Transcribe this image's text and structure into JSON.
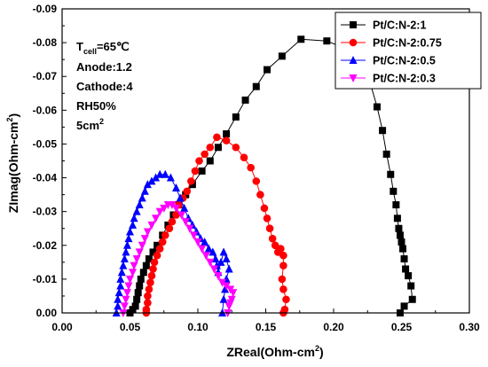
{
  "chart_data": {
    "type": "scatter",
    "xlabel": "ZReal(Ohm-cm",
    "xlabel_sup": "2",
    "xlabel_end": ")",
    "ylabel": "ZImag(Ohm-cm",
    "ylabel_sup": "2",
    "ylabel_end": ")",
    "xlim": [
      0.0,
      0.3
    ],
    "ylim": [
      0.0,
      -0.09
    ],
    "x_ticks": [
      "0.00",
      "0.05",
      "0.10",
      "0.15",
      "0.20",
      "0.25",
      "0.30"
    ],
    "y_ticks": [
      "0.00",
      "-0.01",
      "-0.02",
      "-0.03",
      "-0.04",
      "-0.05",
      "-0.06",
      "-0.07",
      "-0.08",
      "-0.09"
    ],
    "legend_position": "top-right",
    "annotations": {
      "tcell_main": "T",
      "tcell_sub": "cell",
      "tcell_value": "=65℃",
      "anode": "Anode:1.2",
      "cathode": "Cathode:4",
      "rh": "RH50%",
      "area_main": "5cm",
      "area_sup": "2"
    },
    "series": [
      {
        "name": "Pt/C:N-2:1",
        "color": "#000000",
        "marker": "square",
        "points": [
          [
            0.05,
            0.0
          ],
          [
            0.052,
            -0.001
          ],
          [
            0.054,
            -0.002
          ],
          [
            0.055,
            -0.004
          ],
          [
            0.056,
            -0.006
          ],
          [
            0.057,
            -0.008
          ],
          [
            0.058,
            -0.01
          ],
          [
            0.06,
            -0.012
          ],
          [
            0.062,
            -0.014
          ],
          [
            0.064,
            -0.016
          ],
          [
            0.067,
            -0.018
          ],
          [
            0.07,
            -0.02
          ],
          [
            0.074,
            -0.023
          ],
          [
            0.078,
            -0.026
          ],
          [
            0.082,
            -0.029
          ],
          [
            0.086,
            -0.032
          ],
          [
            0.091,
            -0.035
          ],
          [
            0.096,
            -0.038
          ],
          [
            0.103,
            -0.042
          ],
          [
            0.109,
            -0.045
          ],
          [
            0.115,
            -0.049
          ],
          [
            0.121,
            -0.053
          ],
          [
            0.128,
            -0.058
          ],
          [
            0.135,
            -0.063
          ],
          [
            0.143,
            -0.067
          ],
          [
            0.151,
            -0.072
          ],
          [
            0.162,
            -0.076
          ],
          [
            0.176,
            -0.081
          ],
          [
            0.195,
            -0.0805
          ],
          [
            0.21,
            -0.078
          ],
          [
            0.222,
            -0.073
          ],
          [
            0.227,
            -0.068
          ],
          [
            0.232,
            -0.061
          ],
          [
            0.236,
            -0.054
          ],
          [
            0.239,
            -0.047
          ],
          [
            0.242,
            -0.041
          ],
          [
            0.244,
            -0.036
          ],
          [
            0.246,
            -0.032
          ],
          [
            0.247,
            -0.028
          ],
          [
            0.248,
            -0.025
          ],
          [
            0.249,
            -0.023
          ],
          [
            0.25,
            -0.021
          ],
          [
            0.251,
            -0.019
          ],
          [
            0.252,
            -0.016
          ],
          [
            0.253,
            -0.013
          ],
          [
            0.255,
            -0.011
          ],
          [
            0.257,
            -0.008
          ],
          [
            0.258,
            -0.004
          ],
          [
            0.252,
            -0.002
          ],
          [
            0.249,
            0.0
          ]
        ]
      },
      {
        "name": "Pt/C:N-2:0.75",
        "color": "#ff0000",
        "marker": "circle",
        "points": [
          [
            0.062,
            0.0
          ],
          [
            0.062,
            -0.001
          ],
          [
            0.063,
            -0.003
          ],
          [
            0.063,
            -0.005
          ],
          [
            0.064,
            -0.007
          ],
          [
            0.065,
            -0.009
          ],
          [
            0.066,
            -0.011
          ],
          [
            0.067,
            -0.013
          ],
          [
            0.068,
            -0.015
          ],
          [
            0.07,
            -0.017
          ],
          [
            0.072,
            -0.019
          ],
          [
            0.074,
            -0.021
          ],
          [
            0.076,
            -0.023
          ],
          [
            0.079,
            -0.025
          ],
          [
            0.081,
            -0.027
          ],
          [
            0.084,
            -0.029
          ],
          [
            0.086,
            -0.032
          ],
          [
            0.089,
            -0.034
          ],
          [
            0.092,
            -0.036
          ],
          [
            0.095,
            -0.039
          ],
          [
            0.098,
            -0.042
          ],
          [
            0.101,
            -0.045
          ],
          [
            0.105,
            -0.047
          ],
          [
            0.109,
            -0.049
          ],
          [
            0.114,
            -0.052
          ],
          [
            0.121,
            -0.051
          ],
          [
            0.128,
            -0.049
          ],
          [
            0.134,
            -0.046
          ],
          [
            0.139,
            -0.043
          ],
          [
            0.143,
            -0.039
          ],
          [
            0.146,
            -0.035
          ],
          [
            0.149,
            -0.031
          ],
          [
            0.151,
            -0.028
          ],
          [
            0.153,
            -0.025
          ],
          [
            0.155,
            -0.022
          ],
          [
            0.157,
            -0.02
          ],
          [
            0.159,
            -0.018
          ],
          [
            0.161,
            -0.019
          ],
          [
            0.163,
            -0.017
          ],
          [
            0.163,
            -0.014
          ],
          [
            0.162,
            -0.01
          ],
          [
            0.163,
            -0.007
          ],
          [
            0.165,
            -0.004
          ],
          [
            0.164,
            -0.001
          ],
          [
            0.163,
            0.0
          ]
        ]
      },
      {
        "name": "Pt/C:N-2:0.5",
        "color": "#0000ff",
        "marker": "triangle-up",
        "points": [
          [
            0.04,
            0.0
          ],
          [
            0.041,
            -0.002
          ],
          [
            0.041,
            -0.004
          ],
          [
            0.042,
            -0.006
          ],
          [
            0.043,
            -0.008
          ],
          [
            0.043,
            -0.01
          ],
          [
            0.044,
            -0.012
          ],
          [
            0.045,
            -0.014
          ],
          [
            0.046,
            -0.016
          ],
          [
            0.047,
            -0.018
          ],
          [
            0.048,
            -0.02
          ],
          [
            0.049,
            -0.022
          ],
          [
            0.05,
            -0.024
          ],
          [
            0.052,
            -0.026
          ],
          [
            0.053,
            -0.028
          ],
          [
            0.055,
            -0.03
          ],
          [
            0.057,
            -0.032
          ],
          [
            0.059,
            -0.034
          ],
          [
            0.061,
            -0.036
          ],
          [
            0.063,
            -0.038
          ],
          [
            0.066,
            -0.039
          ],
          [
            0.069,
            -0.04
          ],
          [
            0.072,
            -0.041
          ],
          [
            0.076,
            -0.041
          ],
          [
            0.08,
            -0.04
          ],
          [
            0.084,
            -0.037
          ],
          [
            0.087,
            -0.034
          ],
          [
            0.09,
            -0.031
          ],
          [
            0.093,
            -0.028
          ],
          [
            0.096,
            -0.026
          ],
          [
            0.099,
            -0.024
          ],
          [
            0.102,
            -0.022
          ],
          [
            0.105,
            -0.021
          ],
          [
            0.108,
            -0.019
          ],
          [
            0.111,
            -0.018
          ],
          [
            0.113,
            -0.016
          ],
          [
            0.114,
            -0.014
          ],
          [
            0.115,
            -0.012
          ],
          [
            0.117,
            -0.015
          ],
          [
            0.119,
            -0.018
          ],
          [
            0.121,
            -0.016
          ],
          [
            0.123,
            -0.013
          ],
          [
            0.121,
            -0.01
          ],
          [
            0.12,
            -0.007
          ],
          [
            0.119,
            -0.004
          ],
          [
            0.118,
            0.0
          ]
        ]
      },
      {
        "name": "Pt/C:N-2:0.3",
        "color": "#ff00ff",
        "marker": "triangle-down",
        "points": [
          [
            0.045,
            0.0
          ],
          [
            0.046,
            -0.002
          ],
          [
            0.047,
            -0.004
          ],
          [
            0.048,
            -0.006
          ],
          [
            0.049,
            -0.008
          ],
          [
            0.05,
            -0.01
          ],
          [
            0.052,
            -0.012
          ],
          [
            0.053,
            -0.014
          ],
          [
            0.055,
            -0.016
          ],
          [
            0.057,
            -0.018
          ],
          [
            0.059,
            -0.02
          ],
          [
            0.061,
            -0.022
          ],
          [
            0.063,
            -0.024
          ],
          [
            0.066,
            -0.026
          ],
          [
            0.069,
            -0.028
          ],
          [
            0.072,
            -0.03
          ],
          [
            0.075,
            -0.031
          ],
          [
            0.078,
            -0.032
          ],
          [
            0.081,
            -0.032
          ],
          [
            0.084,
            -0.031
          ],
          [
            0.088,
            -0.029
          ],
          [
            0.091,
            -0.027
          ],
          [
            0.094,
            -0.025
          ],
          [
            0.097,
            -0.023
          ],
          [
            0.1,
            -0.021
          ],
          [
            0.103,
            -0.019
          ],
          [
            0.106,
            -0.017
          ],
          [
            0.109,
            -0.015
          ],
          [
            0.112,
            -0.013
          ],
          [
            0.115,
            -0.011
          ],
          [
            0.118,
            -0.009
          ],
          [
            0.121,
            -0.008
          ],
          [
            0.124,
            -0.007
          ],
          [
            0.126,
            -0.006
          ],
          [
            0.125,
            -0.004
          ],
          [
            0.124,
            -0.003
          ],
          [
            0.123,
            -0.002
          ],
          [
            0.122,
            0.0
          ]
        ]
      }
    ]
  }
}
